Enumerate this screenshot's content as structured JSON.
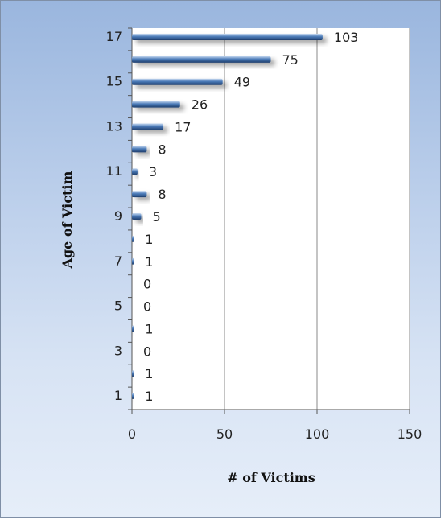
{
  "chart_data": {
    "type": "bar",
    "orientation": "horizontal",
    "xlabel": "# of Victims",
    "ylabel": "Age of Victim",
    "xlim": [
      0,
      150
    ],
    "xticks": [
      0,
      50,
      100,
      150
    ],
    "categories": [
      1,
      2,
      3,
      4,
      5,
      6,
      7,
      8,
      9,
      10,
      11,
      12,
      13,
      14,
      15,
      16,
      17
    ],
    "ytick_labels": [
      "1",
      "3",
      "5",
      "7",
      "9",
      "11",
      "13",
      "15",
      "17"
    ],
    "values": [
      1,
      1,
      0,
      1,
      0,
      0,
      1,
      1,
      5,
      8,
      3,
      8,
      17,
      26,
      49,
      75,
      103
    ],
    "grid": "vertical",
    "legend": "none",
    "colors": {
      "bar": "#3f6ea8",
      "gridline": "#8a8a8a",
      "plot_bg": "#ffffff"
    }
  }
}
